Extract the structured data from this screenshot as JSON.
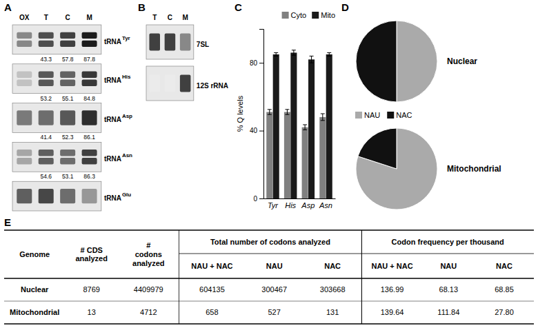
{
  "chart_data": [
    {
      "type": "blot",
      "title": "A",
      "columns": [
        "OX",
        "T",
        "C",
        "M"
      ],
      "row_labels": [
        "tRNA",
        "tRNA",
        "tRNA",
        "tRNA",
        "tRNA"
      ],
      "row_superscripts": [
        "Tyr",
        "His",
        "Asp",
        "Asn",
        "Glu"
      ],
      "intensities": [
        [
          0.55,
          0.75,
          0.8,
          0.9
        ],
        [
          0.35,
          0.72,
          0.68,
          0.82
        ],
        [
          0.6,
          0.65,
          0.72,
          0.85
        ],
        [
          0.45,
          0.7,
          0.65,
          0.8
        ],
        [
          0.7,
          0.78,
          0.65,
          0.5
        ]
      ],
      "bands": [
        2,
        2,
        1,
        2,
        1
      ],
      "quantification": [
        [
          null,
          43.3,
          57.8,
          87.8
        ],
        [
          null,
          53.2,
          55.1,
          84.8
        ],
        [
          null,
          41.4,
          52.3,
          86.1
        ],
        [
          null,
          54.6,
          53.1,
          86.3
        ],
        [
          null,
          null,
          null,
          null
        ]
      ]
    },
    {
      "type": "blot",
      "title": "B",
      "columns": [
        "T",
        "C",
        "M"
      ],
      "row_labels": [
        "7SL",
        "12S rRNA"
      ],
      "intensities": [
        [
          0.8,
          0.8,
          0.55
        ],
        [
          0.15,
          0.15,
          0.8
        ]
      ],
      "bands": [
        1,
        1
      ]
    },
    {
      "type": "bar",
      "title": "C",
      "categories": [
        "Tyr",
        "His",
        "Asp",
        "Asn"
      ],
      "series": [
        {
          "name": "Cyto",
          "color": "#808080",
          "values": [
            51,
            51,
            42,
            48
          ],
          "errors": [
            1.5,
            1.5,
            1.5,
            2.0
          ]
        },
        {
          "name": "Mito",
          "color": "#1a1a1a",
          "values": [
            85,
            86,
            82,
            85
          ],
          "errors": [
            1.0,
            1.5,
            2.0,
            1.0
          ]
        }
      ],
      "ylabel": "% Q levels",
      "ylim": [
        0,
        100
      ],
      "yticks": [
        0,
        40,
        80
      ],
      "legend": "upper right",
      "grid": false
    },
    {
      "type": "pie",
      "title": "D",
      "categories": [
        "NAU",
        "NAC"
      ],
      "colors": [
        "#aaaaaa",
        "#111111"
      ],
      "series": [
        {
          "name": "Nuclear",
          "values": [
            50.0,
            50.0
          ]
        },
        {
          "name": "Mitochondrial",
          "values": [
            80.0,
            20.0
          ]
        }
      ],
      "legend": "left"
    },
    {
      "type": "table",
      "title": "E",
      "columns": [
        "Genome",
        "# CDS\nanalyzed",
        "#\ncodons\nanalyzed",
        "NAU + NAC",
        "NAU",
        "NAC",
        "NAU + NAC",
        "NAU",
        "NAC"
      ],
      "column_groups": [
        null,
        null,
        null,
        "Total number of codons analyzed",
        "Total number of codons analyzed",
        "Total number of codons analyzed",
        "Codon frequency per thousand",
        "Codon frequency per thousand",
        "Codon frequency per thousand"
      ],
      "rows": [
        [
          "Nuclear",
          "8769",
          "4409979",
          "604135",
          "300467",
          "303668",
          "136.99",
          "68.13",
          "68.85"
        ],
        [
          "Mitochondrial",
          "13",
          "4712",
          "658",
          "527",
          "131",
          "139.64",
          "111.84",
          "27.80"
        ]
      ]
    }
  ]
}
